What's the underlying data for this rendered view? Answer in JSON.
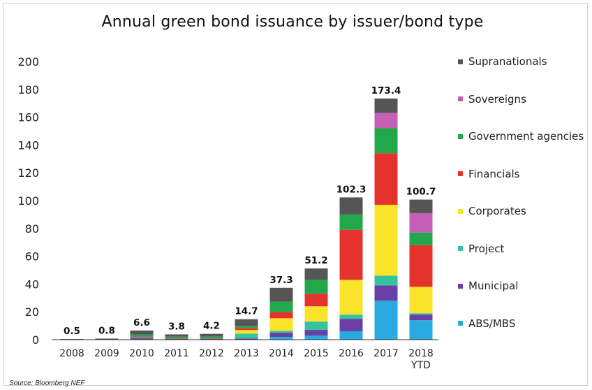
{
  "chart_data": {
    "type": "bar",
    "stacked": true,
    "title": "Annual green bond issuance by issuer/bond type",
    "source": "Source: Bloomberg NEF",
    "xlabel": "",
    "ylabel": "",
    "ylim": [
      0,
      200
    ],
    "yticks": [
      0,
      20,
      40,
      60,
      80,
      100,
      120,
      140,
      160,
      180,
      200
    ],
    "grid": false,
    "legend_position": "right",
    "categories": [
      "2008",
      "2009",
      "2010",
      "2011",
      "2012",
      "2013",
      "2014",
      "2015",
      "2016",
      "2017",
      "2018\nYTD"
    ],
    "totals": [
      "0.5",
      "0.8",
      "6.6",
      "3.8",
      "4.2",
      "14.7",
      "37.3",
      "51.2",
      "102.3",
      "173.4",
      "100.7"
    ],
    "series": [
      {
        "name": "ABS/MBS",
        "color": "#29abe2",
        "values": [
          0,
          0,
          0,
          0,
          0,
          0,
          2,
          3,
          6,
          28,
          14
        ]
      },
      {
        "name": "Municipal",
        "color": "#6a3fa6",
        "values": [
          0,
          0,
          1.2,
          0.6,
          0.5,
          0.9,
          3,
          4,
          9,
          11,
          4
        ]
      },
      {
        "name": "Project",
        "color": "#34c2a0",
        "values": [
          0,
          0,
          0.5,
          0.3,
          0.4,
          3.5,
          1.4,
          6,
          3,
          7,
          1
        ]
      },
      {
        "name": "Corporates",
        "color": "#f9e42a",
        "values": [
          0,
          0,
          0,
          0,
          0,
          2.5,
          9,
          11,
          25,
          51,
          19
        ]
      },
      {
        "name": "Financials",
        "color": "#e5322d",
        "values": [
          0,
          0,
          0.5,
          0.2,
          0.2,
          1.5,
          4.5,
          9,
          36,
          37,
          30
        ]
      },
      {
        "name": "Government agencies",
        "color": "#21a84a",
        "values": [
          0,
          0,
          1.4,
          1.0,
          1.1,
          1.5,
          7.4,
          10,
          11,
          18,
          9
        ]
      },
      {
        "name": "Sovereigns",
        "color": "#c35fb5",
        "values": [
          0,
          0,
          0,
          0,
          0,
          0,
          0,
          0,
          0,
          11,
          14
        ]
      },
      {
        "name": "Supranationals",
        "color": "#555555",
        "values": [
          0.5,
          0.8,
          3.0,
          1.7,
          2.0,
          4.8,
          10,
          8.2,
          12.3,
          10.4,
          9.7
        ]
      }
    ]
  }
}
